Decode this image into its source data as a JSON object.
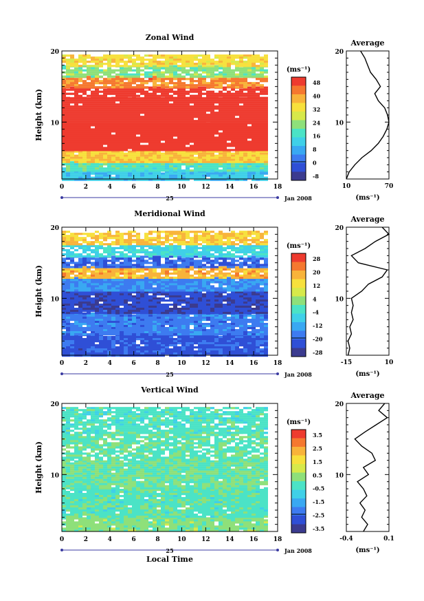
{
  "chart_data": [
    {
      "type": "heatmap",
      "title": "Zonal Wind",
      "ylabel": "Height (km)",
      "ylim": [
        2,
        20
      ],
      "xlim": [
        0,
        18
      ],
      "y_ticks": [
        {
          "value": 10,
          "label": "10"
        },
        {
          "value": 20,
          "label": "20"
        }
      ],
      "x_ticks": [
        "0",
        "2",
        "4",
        "6",
        "8",
        "10",
        "12",
        "14",
        "16",
        "18"
      ],
      "date_marker": "25",
      "date_label": "Jan 2008",
      "colorbar": {
        "unit": "(ms⁻¹)",
        "labels": [
          "48",
          "40",
          "32",
          "24",
          "16",
          "8",
          "0",
          "-8"
        ],
        "zero_label": "0"
      },
      "bands": [
        {
          "ymin": 2.0,
          "ymax": 3.2,
          "value": 12
        },
        {
          "ymin": 3.2,
          "ymax": 4.5,
          "value": 18
        },
        {
          "ymin": 4.5,
          "ymax": 6.0,
          "value": 34
        },
        {
          "ymin": 6.0,
          "ymax": 10.0,
          "value": 52
        },
        {
          "ymin": 10.0,
          "ymax": 13.5,
          "value": 50
        },
        {
          "ymin": 13.5,
          "ymax": 15.0,
          "value": 52
        },
        {
          "ymin": 15.0,
          "ymax": 16.5,
          "value": 40
        },
        {
          "ymin": 16.5,
          "ymax": 18.0,
          "value": 22
        },
        {
          "ymin": 18.0,
          "ymax": 19.5,
          "value": 32
        }
      ],
      "profile": {
        "title": "Average",
        "xlabel": "(ms⁻¹)",
        "x_ticks": [
          "10",
          "70"
        ],
        "xlim": [
          10,
          70
        ],
        "y_ticks": [
          {
            "value": 10,
            "label": "10"
          },
          {
            "value": 20,
            "label": "20"
          }
        ],
        "points": [
          [
            10,
            2
          ],
          [
            14,
            3
          ],
          [
            22,
            4
          ],
          [
            32,
            5
          ],
          [
            45,
            6
          ],
          [
            55,
            7
          ],
          [
            62,
            8
          ],
          [
            67,
            9
          ],
          [
            70,
            10
          ],
          [
            68,
            11
          ],
          [
            64,
            12
          ],
          [
            55,
            13
          ],
          [
            50,
            14
          ],
          [
            58,
            15
          ],
          [
            52,
            16
          ],
          [
            44,
            17
          ],
          [
            40,
            18
          ],
          [
            36,
            19
          ],
          [
            30,
            20
          ]
        ]
      }
    },
    {
      "type": "heatmap",
      "title": "Meridional Wind",
      "ylabel": "Height (km)",
      "ylim": [
        2,
        20
      ],
      "xlim": [
        0,
        18
      ],
      "y_ticks": [
        {
          "value": 10,
          "label": "10"
        },
        {
          "value": 20,
          "label": "20"
        }
      ],
      "x_ticks": [
        "0",
        "2",
        "4",
        "6",
        "8",
        "10",
        "12",
        "14",
        "16",
        "18"
      ],
      "date_marker": "25",
      "date_label": "Jan 2008",
      "colorbar": {
        "unit": "(ms⁻¹)",
        "labels": [
          "28",
          "20",
          "12",
          "4",
          "-4",
          "-12",
          "-20",
          "-28"
        ],
        "zero_label": ""
      },
      "bands": [
        {
          "ymin": 2.0,
          "ymax": 5.0,
          "value": -20
        },
        {
          "ymin": 5.0,
          "ymax": 8.0,
          "value": -16
        },
        {
          "ymin": 8.0,
          "ymax": 11.0,
          "value": -22
        },
        {
          "ymin": 11.0,
          "ymax": 13.0,
          "value": -14
        },
        {
          "ymin": 13.0,
          "ymax": 14.5,
          "value": 16
        },
        {
          "ymin": 14.5,
          "ymax": 16.0,
          "value": -18
        },
        {
          "ymin": 16.0,
          "ymax": 17.5,
          "value": -6
        },
        {
          "ymin": 17.5,
          "ymax": 19.5,
          "value": 14
        }
      ],
      "profile": {
        "title": "Average",
        "xlabel": "(ms⁻¹)",
        "x_ticks": [
          "-15",
          "10"
        ],
        "xlim": [
          -15,
          10
        ],
        "y_ticks": [
          {
            "value": 10,
            "label": "10"
          },
          {
            "value": 20,
            "label": "20"
          }
        ],
        "points": [
          [
            -14,
            2
          ],
          [
            -13,
            3
          ],
          [
            -14,
            4
          ],
          [
            -12,
            5
          ],
          [
            -13,
            6
          ],
          [
            -11,
            7
          ],
          [
            -12,
            8
          ],
          [
            -11,
            9
          ],
          [
            -12,
            10
          ],
          [
            -6,
            11
          ],
          [
            -2,
            12
          ],
          [
            6,
            13
          ],
          [
            9,
            14
          ],
          [
            -8,
            15
          ],
          [
            -12,
            16
          ],
          [
            -4,
            17
          ],
          [
            2,
            18
          ],
          [
            10,
            19
          ],
          [
            6,
            20
          ]
        ]
      }
    },
    {
      "type": "heatmap",
      "title": "Vertical Wind",
      "ylabel": "Height (km)",
      "ylim": [
        2,
        20
      ],
      "xlim": [
        0,
        18
      ],
      "xlabel": "Local Time",
      "y_ticks": [
        {
          "value": 10,
          "label": "10"
        },
        {
          "value": 20,
          "label": "20"
        }
      ],
      "x_ticks": [
        "0",
        "2",
        "4",
        "6",
        "8",
        "10",
        "12",
        "14",
        "16",
        "18"
      ],
      "date_marker": "25",
      "date_label": "Jan 2008",
      "colorbar": {
        "unit": "(ms⁻¹)",
        "labels": [
          "3.5",
          "2.5",
          "1.5",
          "0.5",
          "-0.5",
          "-1.5",
          "-2.5",
          "-3.5"
        ],
        "zero_label": ""
      },
      "bands": [
        {
          "ymin": 2.0,
          "ymax": 4.0,
          "value": 0.2
        },
        {
          "ymin": 4.0,
          "ymax": 8.0,
          "value": -0.2
        },
        {
          "ymin": 8.0,
          "ymax": 12.0,
          "value": 0.0
        },
        {
          "ymin": 12.0,
          "ymax": 16.0,
          "value": -0.1
        },
        {
          "ymin": 16.0,
          "ymax": 19.5,
          "value": -0.3
        }
      ],
      "profile": {
        "title": "Average",
        "xlabel": "(ms⁻¹)",
        "x_ticks": [
          "-0.4",
          "0.1"
        ],
        "xlim": [
          -0.4,
          0.1
        ],
        "y_ticks": [
          {
            "value": 10,
            "label": "10"
          },
          {
            "value": 20,
            "label": "20"
          }
        ],
        "points": [
          [
            -0.2,
            2
          ],
          [
            -0.15,
            3
          ],
          [
            -0.22,
            4
          ],
          [
            -0.18,
            5
          ],
          [
            -0.24,
            6
          ],
          [
            -0.16,
            7
          ],
          [
            -0.2,
            8
          ],
          [
            -0.27,
            9
          ],
          [
            -0.14,
            10
          ],
          [
            -0.2,
            11
          ],
          [
            -0.06,
            12
          ],
          [
            -0.1,
            13
          ],
          [
            -0.22,
            14
          ],
          [
            -0.3,
            15
          ],
          [
            -0.18,
            16
          ],
          [
            -0.05,
            17
          ],
          [
            0.08,
            18
          ],
          [
            -0.02,
            19
          ],
          [
            0.05,
            20
          ]
        ]
      }
    }
  ]
}
